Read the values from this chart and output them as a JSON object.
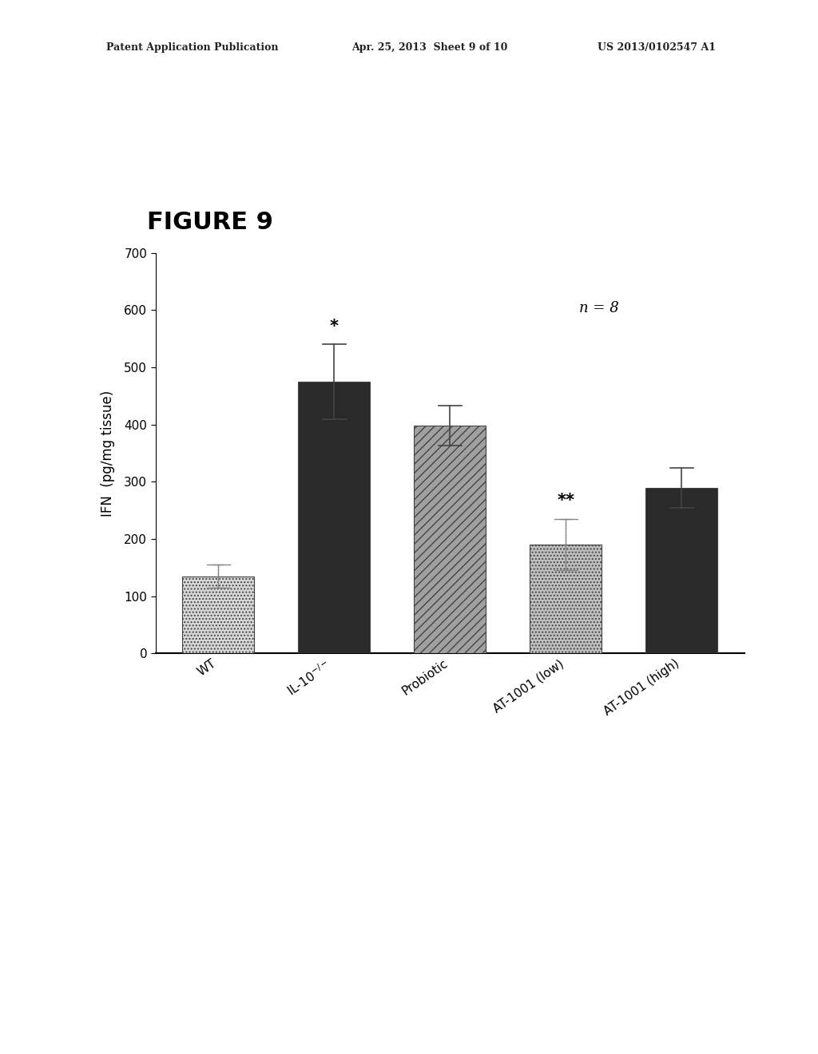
{
  "categories": [
    "WT",
    "IL-10$^{-/-}$",
    "Probiotic",
    "AT-1001 (low)",
    "AT-1001 (high)"
  ],
  "values": [
    135,
    475,
    398,
    190,
    290
  ],
  "errors": [
    20,
    65,
    35,
    45,
    35
  ],
  "bar_colors": [
    "#d8d8d8",
    "#2a2a2a",
    "#a0a0a0",
    "#c0c0c0",
    "#2a2a2a"
  ],
  "bar_hatches": [
    "....",
    null,
    "///",
    "....",
    null
  ],
  "ylabel": "IFN  (pg/mg tissue)",
  "ylim": [
    0,
    700
  ],
  "yticks": [
    0,
    100,
    200,
    300,
    400,
    500,
    600,
    700
  ],
  "figure_label": "FIGURE 9",
  "annotation_n": "n = 8",
  "star_labels": [
    null,
    "*",
    null,
    "**",
    null
  ],
  "header_left": "Patent Application Publication",
  "header_mid": "Apr. 25, 2013  Sheet 9 of 10",
  "header_right": "US 2013/0102547 A1",
  "background_color": "#ffffff",
  "error_dotted": [
    true,
    false,
    false,
    true,
    false
  ]
}
